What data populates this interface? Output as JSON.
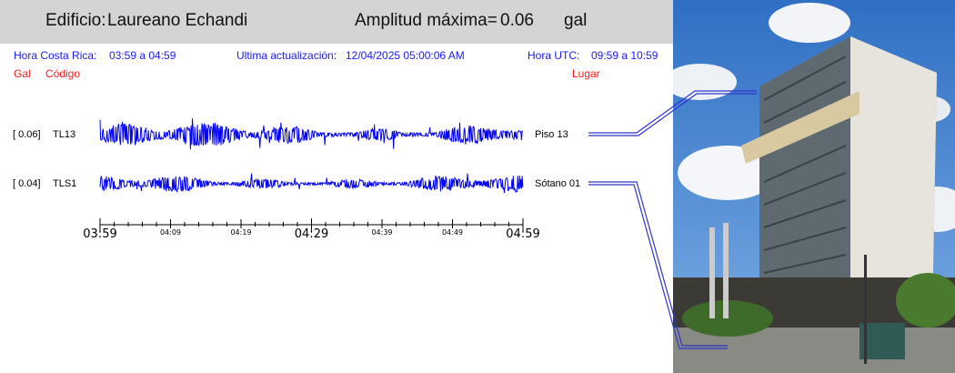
{
  "header": {
    "building_label": "Edificio:",
    "building_name": "Laureano Echandi",
    "max_amp_label": "Amplitud máxima=",
    "max_amp_value": "0.06",
    "max_amp_unit": "gal"
  },
  "info": {
    "local_time_label": "Hora Costa Rica:",
    "local_time_range": "03:59 a 04:59",
    "update_label": "Ultima actualización:",
    "update_value": "12/04/2025 05:00:06 AM",
    "utc_label": "Hora UTC:",
    "utc_range": "09:59 a 10:59"
  },
  "columns": {
    "gal": "Gal",
    "code": "Código",
    "place": "Lugar"
  },
  "chart_data": {
    "type": "line",
    "title": "",
    "xlabel": "",
    "ylabel": "",
    "x_range": [
      "03:59",
      "04:59"
    ],
    "x_ticks": {
      "major": [
        "03:59",
        "04:29",
        "04:59"
      ],
      "minor": [
        "04:09",
        "04:19",
        "04:39",
        "04:49"
      ]
    },
    "channels": [
      {
        "amplitude_text": "[  0.06]",
        "code": "TL13",
        "location": "Piso 13",
        "peak_gal": 0.06
      },
      {
        "amplitude_text": "[  0.04]",
        "code": "TLS1",
        "location": "Sótano 01",
        "peak_gal": 0.04
      }
    ],
    "trace_color": "#0000ff",
    "grid": false
  },
  "colors": {
    "header_bg": "#d4d4d4",
    "info_text": "#1a1aff",
    "column_text": "#ff1a1a",
    "trace": "#0000ff"
  }
}
